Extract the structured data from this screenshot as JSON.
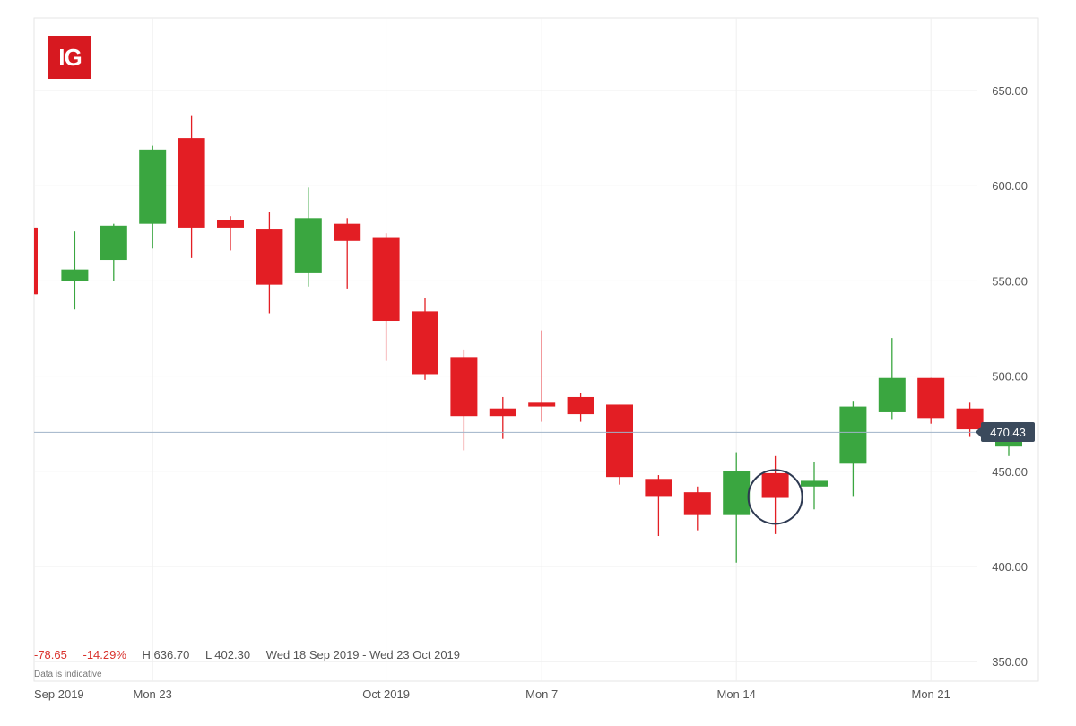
{
  "brand": {
    "logo_text": "IG",
    "logo_color": "#d71920"
  },
  "colors": {
    "up": "#3aa640",
    "down": "#e31e24",
    "highlight_ring": "#2e3a52",
    "price_tag_bg": "#3b4a5c"
  },
  "summary": {
    "change": "-78.65",
    "change_pct": "-14.29%",
    "high": "H 636.70",
    "low": "L 402.30",
    "range": "Wed 18 Sep 2019 - Wed 23 Oct 2019",
    "note": "Data is indicative"
  },
  "current_price": {
    "label": "470.43",
    "value": 470.43
  },
  "chart_data": {
    "type": "candlestick",
    "ylim": [
      340,
      680
    ],
    "y_ticks": [
      "650.00",
      "600.00",
      "550.00",
      "500.00",
      "450.00",
      "400.00",
      "350.00"
    ],
    "y_tick_values": [
      650,
      600,
      550,
      500,
      450,
      400,
      350
    ],
    "x_tick_labels": [
      "Sep 2019",
      "Mon 23",
      "Oct 2019",
      "Mon 7",
      "Mon 14",
      "Mon 21"
    ],
    "x_tick_dates": [
      "2019-09-18",
      "2019-09-23",
      "2019-10-01",
      "2019-10-07",
      "2019-10-14",
      "2019-10-21"
    ],
    "highlighted_date": "2019-10-15",
    "candles": [
      {
        "date": "2019-09-18",
        "open": 578,
        "high": 578,
        "low": 543,
        "close": 543
      },
      {
        "date": "2019-09-19",
        "open": 550,
        "high": 576,
        "low": 535,
        "close": 556
      },
      {
        "date": "2019-09-20",
        "open": 561,
        "high": 580,
        "low": 550,
        "close": 579
      },
      {
        "date": "2019-09-23",
        "open": 580,
        "high": 621,
        "low": 567,
        "close": 619
      },
      {
        "date": "2019-09-24",
        "open": 625,
        "high": 637,
        "low": 562,
        "close": 578
      },
      {
        "date": "2019-09-25",
        "open": 582,
        "high": 584,
        "low": 566,
        "close": 578
      },
      {
        "date": "2019-09-26",
        "open": 577,
        "high": 586,
        "low": 533,
        "close": 548
      },
      {
        "date": "2019-09-27",
        "open": 554,
        "high": 599,
        "low": 547,
        "close": 583
      },
      {
        "date": "2019-09-30",
        "open": 580,
        "high": 583,
        "low": 546,
        "close": 571
      },
      {
        "date": "2019-10-01",
        "open": 573,
        "high": 575,
        "low": 508,
        "close": 529
      },
      {
        "date": "2019-10-02",
        "open": 534,
        "high": 541,
        "low": 498,
        "close": 501
      },
      {
        "date": "2019-10-03",
        "open": 510,
        "high": 514,
        "low": 461,
        "close": 479
      },
      {
        "date": "2019-10-04",
        "open": 483,
        "high": 489,
        "low": 467,
        "close": 479
      },
      {
        "date": "2019-10-07",
        "open": 486,
        "high": 524,
        "low": 476,
        "close": 484
      },
      {
        "date": "2019-10-08",
        "open": 489,
        "high": 491,
        "low": 476,
        "close": 480
      },
      {
        "date": "2019-10-09",
        "open": 485,
        "high": 485,
        "low": 443,
        "close": 447
      },
      {
        "date": "2019-10-10",
        "open": 446,
        "high": 448,
        "low": 416,
        "close": 437
      },
      {
        "date": "2019-10-11",
        "open": 439,
        "high": 442,
        "low": 419,
        "close": 427
      },
      {
        "date": "2019-10-14",
        "open": 427,
        "high": 460,
        "low": 402,
        "close": 450
      },
      {
        "date": "2019-10-15",
        "open": 449,
        "high": 458,
        "low": 417,
        "close": 436
      },
      {
        "date": "2019-10-16",
        "open": 442,
        "high": 455,
        "low": 430,
        "close": 445
      },
      {
        "date": "2019-10-17",
        "open": 454,
        "high": 487,
        "low": 437,
        "close": 484
      },
      {
        "date": "2019-10-18",
        "open": 481,
        "high": 520,
        "low": 477,
        "close": 499
      },
      {
        "date": "2019-10-21",
        "open": 499,
        "high": 499,
        "low": 475,
        "close": 478
      },
      {
        "date": "2019-10-22",
        "open": 483,
        "high": 486,
        "low": 468,
        "close": 472
      },
      {
        "date": "2019-10-23",
        "open": 463,
        "high": 472,
        "low": 458,
        "close": 470
      }
    ]
  }
}
